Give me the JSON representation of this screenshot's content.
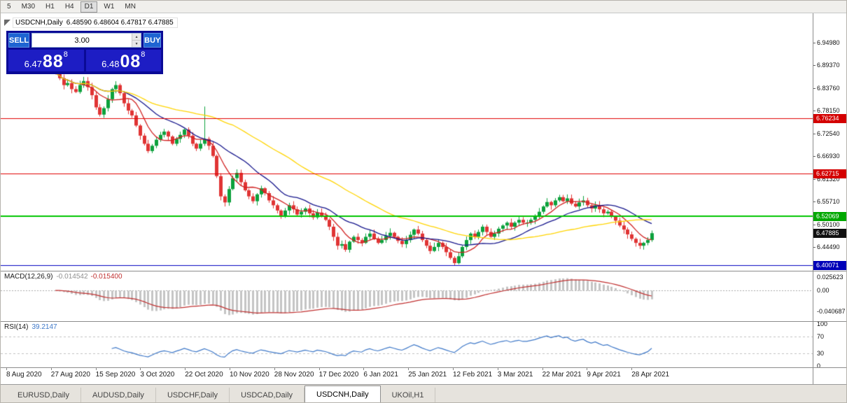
{
  "window": {
    "toolbar": {
      "timeframes": [
        "5",
        "M30",
        "H1",
        "H4",
        "D1",
        "W1",
        "MN"
      ],
      "active_timeframe": "D1"
    }
  },
  "chart_header": {
    "symbol_period": "USDCNH,Daily",
    "quote_line": "6.48590 6.48604 6.47817 6.47885"
  },
  "trade_panel": {
    "sell_label": "SELL",
    "buy_label": "BUY",
    "volume": "3.00",
    "sell": {
      "int": "6.47",
      "pips": "88",
      "pt": "8"
    },
    "buy": {
      "int": "6.48",
      "pips": "08",
      "pt": "8"
    }
  },
  "tabs": [
    {
      "label": "EURUSD,Daily",
      "active": false
    },
    {
      "label": "AUDUSD,Daily",
      "active": false
    },
    {
      "label": "USDCHF,Daily",
      "active": false
    },
    {
      "label": "USDCAD,Daily",
      "active": false
    },
    {
      "label": "USDCNH,Daily",
      "active": true
    },
    {
      "label": "UKOil,H1",
      "active": false
    }
  ],
  "chart_data": {
    "type": "candlestick",
    "symbol": "USDCNH",
    "timeframe": "Daily",
    "last_quote": {
      "open": "6.48590",
      "high": "6.48604",
      "low": "6.47817",
      "close": "6.47885"
    },
    "price_axis_labels": [
      "6.94980",
      "6.89370",
      "6.83760",
      "6.78150",
      "6.72540",
      "6.66930",
      "6.61320",
      "6.55710",
      "6.50100",
      "6.44490"
    ],
    "x_axis_labels": [
      "8 Aug 2020",
      "27 Aug 2020",
      "15 Sep 2020",
      "3 Oct 2020",
      "22 Oct 2020",
      "10 Nov 2020",
      "28 Nov 2020",
      "17 Dec 2020",
      "6 Jan 2021",
      "25 Jan 2021",
      "12 Feb 2021",
      "3 Mar 2021",
      "22 Mar 2021",
      "9 Apr 2021",
      "28 Apr 2021"
    ],
    "levels": [
      {
        "name": "resistance-line-1",
        "label": "6.76234",
        "value": 6.76234,
        "line_color": "#e10000",
        "tag_color": "#d40000",
        "line_width": 1
      },
      {
        "name": "resistance-line-2",
        "label": "6.62715",
        "value": 6.62715,
        "line_color": "#e10000",
        "tag_color": "#d40000",
        "line_width": 1
      },
      {
        "name": "support-line-green",
        "label": "6.52069",
        "value": 6.52069,
        "line_color": "#00c400",
        "tag_color": "#00a800",
        "line_width": 2
      },
      {
        "name": "support-line-blue",
        "label": "6.40071",
        "value": 6.40071,
        "line_color": "#0000c0",
        "tag_color": "#0000b8",
        "line_width": 1
      },
      {
        "name": "current-price",
        "label": "6.47885",
        "value": 6.47885,
        "line_color": null,
        "tag_color": "#101010",
        "line_width": 0
      }
    ],
    "closes": [
      6.875,
      6.862,
      6.845,
      6.85,
      6.835,
      6.828,
      6.845,
      6.855,
      6.84,
      6.82,
      6.79,
      6.772,
      6.788,
      6.81,
      6.835,
      6.845,
      6.825,
      6.8,
      6.782,
      6.77,
      6.745,
      6.72,
      6.7,
      6.682,
      6.695,
      6.71,
      6.722,
      6.73,
      6.718,
      6.7,
      6.712,
      6.722,
      6.735,
      6.72,
      6.7,
      6.688,
      6.7,
      6.712,
      6.695,
      6.67,
      6.62,
      6.57,
      6.555,
      6.588,
      6.615,
      6.628,
      6.605,
      6.585,
      6.57,
      6.558,
      6.575,
      6.59,
      6.578,
      6.56,
      6.548,
      6.535,
      6.522,
      6.535,
      6.548,
      6.538,
      6.525,
      6.532,
      6.54,
      6.528,
      6.518,
      6.53,
      6.522,
      6.512,
      6.495,
      6.47,
      6.448,
      6.452,
      6.438,
      6.458,
      6.47,
      6.462,
      6.455,
      6.47,
      6.478,
      6.465,
      6.455,
      6.462,
      6.472,
      6.48,
      6.47,
      6.46,
      6.452,
      6.462,
      6.475,
      6.488,
      6.478,
      6.462,
      6.448,
      6.435,
      6.445,
      6.455,
      6.445,
      6.432,
      6.418,
      6.405,
      6.422,
      6.445,
      6.462,
      6.478,
      6.47,
      6.482,
      6.495,
      6.482,
      6.47,
      6.478,
      6.49,
      6.498,
      6.505,
      6.495,
      6.505,
      6.512,
      6.505,
      6.505,
      6.512,
      6.52,
      6.532,
      6.545,
      6.556,
      6.548,
      6.56,
      6.568,
      6.558,
      6.565,
      6.552,
      6.545,
      6.555,
      6.56,
      6.548,
      6.54,
      6.548,
      6.538,
      6.528,
      6.532,
      6.52,
      6.51,
      6.498,
      6.488,
      6.476,
      6.465,
      6.455,
      6.448,
      6.455,
      6.462,
      6.479
    ],
    "wick_overrides": {
      "0": {
        "high": 6.888
      },
      "37": {
        "high": 6.792
      },
      "42": {
        "low": 6.545
      },
      "99": {
        "low": 6.4
      },
      "145": {
        "low": 6.44
      }
    },
    "colors": {
      "bull": "#0ca13c",
      "bear": "#e03434"
    },
    "moving_averages": [
      {
        "name": "ma-fast",
        "period": 7,
        "color": "#d02020"
      },
      {
        "name": "ma-mid",
        "period": 18,
        "color": "#16168c"
      },
      {
        "name": "ma-slow",
        "period": 45,
        "color": "#ffd400"
      }
    ],
    "macd": {
      "label": "MACD(12,26,9)",
      "value_main": "-0.014542",
      "value_signal": "-0.015400",
      "axis_labels": [
        "0.025623",
        "0.00",
        "-0.040687"
      ],
      "range": [
        0.035,
        -0.055
      ],
      "histogram_color": "#c4c4c4",
      "signal_color": "#c03030"
    },
    "rsi": {
      "label": "RSI(14)",
      "value": "39.2147",
      "axis_labels": [
        "100",
        "70",
        "30",
        "0"
      ],
      "levels": [
        70,
        30
      ],
      "color": "#3e78c8"
    }
  }
}
